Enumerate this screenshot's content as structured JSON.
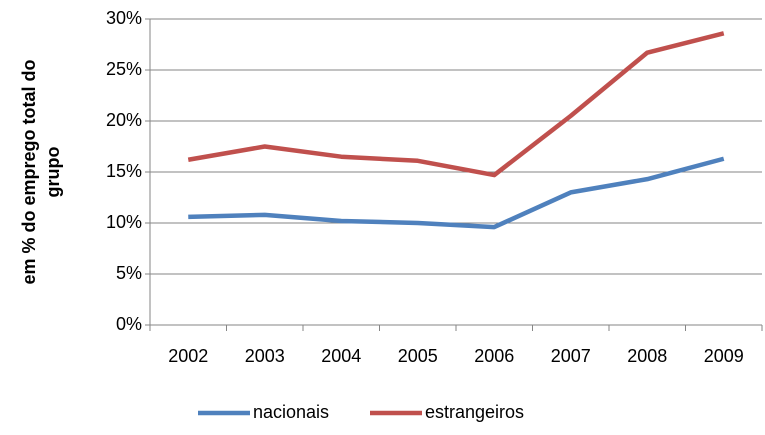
{
  "chart_data": {
    "type": "line",
    "ylabel": [
      "em % do emprego total do",
      "grupo"
    ],
    "categories": [
      "2002",
      "2003",
      "2004",
      "2005",
      "2006",
      "2007",
      "2008",
      "2009"
    ],
    "series": [
      {
        "name": "nacionais",
        "color": "#4f81bd",
        "values": [
          10.6,
          10.8,
          10.2,
          10.0,
          9.6,
          13.0,
          14.3,
          16.3
        ]
      },
      {
        "name": "estrangeiros",
        "color": "#c0504d",
        "values": [
          16.2,
          17.5,
          16.5,
          16.1,
          14.7,
          20.5,
          26.7,
          28.6
        ]
      }
    ],
    "ylim": [
      0,
      30
    ],
    "yticks": [
      {
        "value": 0,
        "label": "0%"
      },
      {
        "value": 5,
        "label": "5%"
      },
      {
        "value": 10,
        "label": "10%"
      },
      {
        "value": 15,
        "label": "15%"
      },
      {
        "value": 20,
        "label": "20%"
      },
      {
        "value": 25,
        "label": "25%"
      },
      {
        "value": 30,
        "label": "30%"
      }
    ],
    "grid": true,
    "legend": "bottom"
  }
}
